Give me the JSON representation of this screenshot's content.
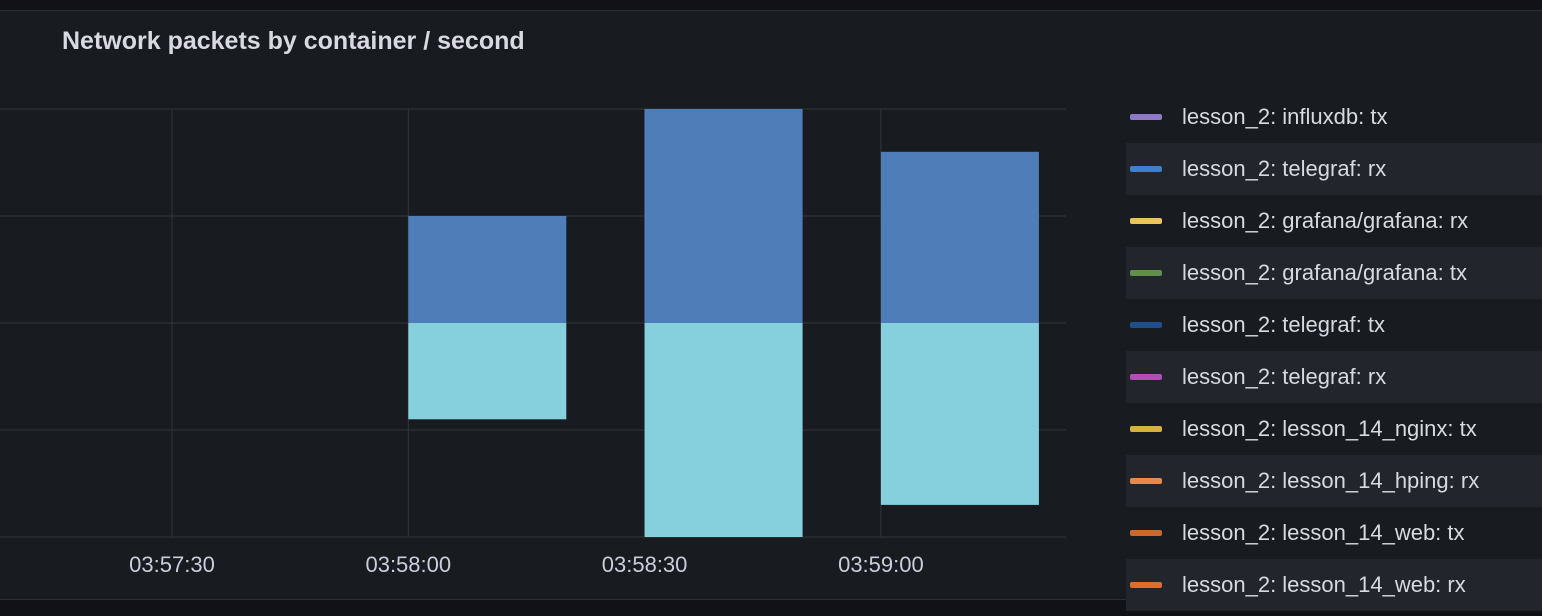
{
  "panel": {
    "title": "Network packets by container / second"
  },
  "chart_data": {
    "type": "bar",
    "stacked": true,
    "x": [
      "03:58:00",
      "03:58:30",
      "03:59:00"
    ],
    "series": [
      {
        "name": "lesson_2: telegraf: rx",
        "color": "#4f7db8",
        "values": [
          1,
          2,
          1.6
        ]
      },
      {
        "name": "",
        "color": "#86cfdd",
        "values": [
          -0.9,
          -2,
          -1.7
        ]
      }
    ],
    "x_ticks": [
      "03:57:30",
      "03:58:00",
      "03:58:30",
      "03:59:00"
    ],
    "ylim": [
      -2,
      2
    ],
    "grid": true,
    "legend_position": "right"
  },
  "legend": [
    {
      "label": "lesson_2: influxdb: tx",
      "color": "#8f7ac9"
    },
    {
      "label": "lesson_2: telegraf: rx",
      "color": "#3d7fd0"
    },
    {
      "label": "lesson_2: grafana/grafana: rx",
      "color": "#e9c45a"
    },
    {
      "label": "lesson_2: grafana/grafana: tx",
      "color": "#5f8f4a"
    },
    {
      "label": "lesson_2: telegraf: tx",
      "color": "#1f4e8c"
    },
    {
      "label": "lesson_2: telegraf: rx",
      "color": "#b54db8"
    },
    {
      "label": "lesson_2: lesson_14_nginx: tx",
      "color": "#d4b23c"
    },
    {
      "label": "lesson_2: lesson_14_hping: rx",
      "color": "#e8884a"
    },
    {
      "label": "lesson_2: lesson_14_web: tx",
      "color": "#c9692e"
    },
    {
      "label": "lesson_2: lesson_14_web: rx",
      "color": "#e06d2a"
    }
  ]
}
